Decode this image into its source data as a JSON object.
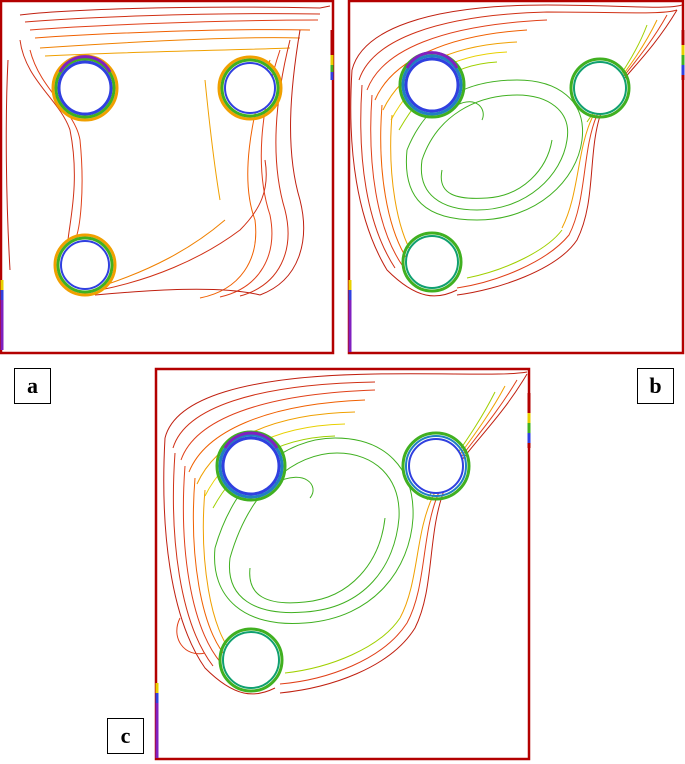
{
  "panels": [
    {
      "id": "a",
      "label": "a"
    },
    {
      "id": "b",
      "label": "b"
    },
    {
      "id": "c",
      "label": "c"
    }
  ],
  "colors": {
    "frame": "#b30000",
    "contour_scale": [
      "#b30000",
      "#e03020",
      "#f06000",
      "#f0a000",
      "#e8d000",
      "#a0d000",
      "#40b020",
      "#10a070",
      "#2080c0",
      "#3040e0",
      "#8020c0"
    ]
  }
}
